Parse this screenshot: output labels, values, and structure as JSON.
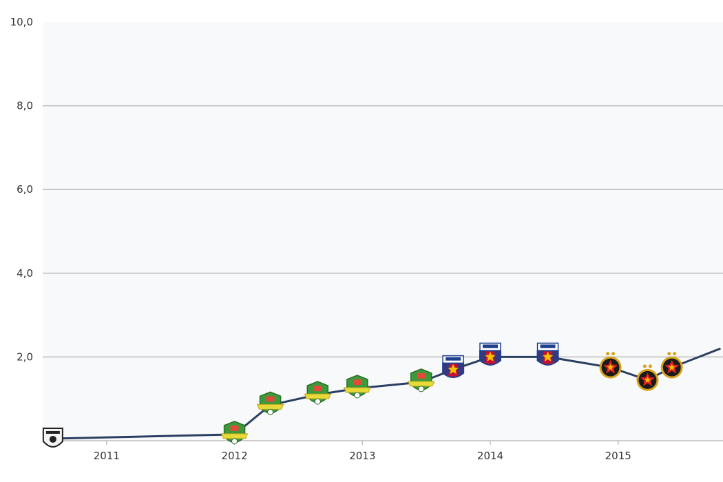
{
  "chart_data": {
    "type": "line",
    "title": "",
    "xlabel": "",
    "ylabel": "",
    "ylim": [
      0,
      10
    ],
    "grid": true,
    "y_ticks": [
      "10,0",
      "8,0",
      "6,0",
      "4,0",
      "2,0"
    ],
    "x_ticks": [
      {
        "label": "2011",
        "x": 2011.0
      },
      {
        "label": "2012",
        "x": 2012.0
      },
      {
        "label": "2013",
        "x": 2013.0
      },
      {
        "label": "2014",
        "x": 2014.0
      },
      {
        "label": "2015",
        "x": 2015.0
      }
    ],
    "series": [
      {
        "color": "#2b3f63",
        "points": [
          {
            "x": 2010.58,
            "y": 0.05,
            "club": "white"
          },
          {
            "x": 2012.0,
            "y": 0.15,
            "club": "green"
          },
          {
            "x": 2012.28,
            "y": 0.85,
            "club": "green"
          },
          {
            "x": 2012.65,
            "y": 1.1,
            "club": "green"
          },
          {
            "x": 2012.96,
            "y": 1.25,
            "club": "green"
          },
          {
            "x": 2013.46,
            "y": 1.4,
            "club": "green"
          },
          {
            "x": 2013.71,
            "y": 1.7,
            "club": "steaua"
          },
          {
            "x": 2014.0,
            "y": 2.0,
            "club": "steaua"
          },
          {
            "x": 2014.45,
            "y": 2.0,
            "club": "steaua"
          },
          {
            "x": 2014.94,
            "y": 1.75,
            "club": "fcsb"
          },
          {
            "x": 2015.23,
            "y": 1.45,
            "club": "fcsb"
          },
          {
            "x": 2015.42,
            "y": 1.75,
            "club": "fcsb"
          },
          {
            "x": 2015.8,
            "y": 2.2,
            "club": "none"
          }
        ]
      }
    ],
    "colors": {
      "plot_bg": "#f8f9fa",
      "grid": "#bdbdbd",
      "line": "#2b3f63",
      "green_badge": "#3d9a3a",
      "yellow_ribbon": "#e8d93a",
      "steaua_red": "#c8102e",
      "steaua_blue": "#1f3f8f",
      "fcsb_dark": "#1a1a1a",
      "fcsb_gold": "#d9a21b"
    }
  }
}
